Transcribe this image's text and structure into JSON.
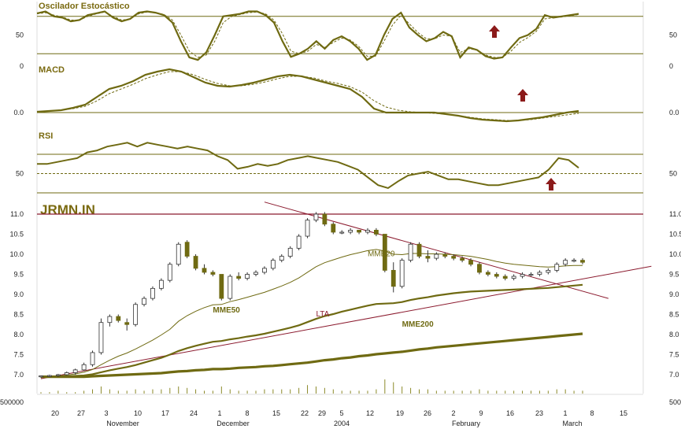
{
  "brand": "JRMN.IN",
  "colors": {
    "olive": "#6f6a12",
    "oliveLight": "#8c8a2a",
    "maroon": "#8b1a2e",
    "arrow": "#8b1a1a",
    "bg": "#ffffff"
  },
  "chart_data": [
    {
      "type": "line",
      "title": "Oscilador Estocástico",
      "ylim": [
        0,
        100
      ],
      "ticks": [
        {
          "v": 50,
          "label": "50"
        },
        {
          "v": 0,
          "label": "0"
        }
      ],
      "levels": [
        80,
        20
      ],
      "series": [
        {
          "values": [
            85,
            88,
            80,
            78,
            72,
            74,
            82,
            85,
            88,
            78,
            72,
            76,
            86,
            88,
            86,
            82,
            70,
            40,
            14,
            10,
            22,
            50,
            80,
            82,
            84,
            88,
            88,
            82,
            70,
            40,
            15,
            20,
            28,
            40,
            28,
            42,
            48,
            40,
            28,
            10,
            18,
            50,
            76,
            86,
            62,
            50,
            40,
            45,
            55,
            48,
            14,
            30,
            26,
            16,
            12,
            14,
            30,
            45,
            50,
            60,
            82,
            78,
            80,
            82,
            84
          ]
        },
        {
          "values": [
            84,
            86,
            82,
            79,
            74,
            74,
            80,
            84,
            87,
            80,
            74,
            76,
            84,
            87,
            86,
            83,
            74,
            50,
            24,
            14,
            18,
            40,
            70,
            80,
            83,
            86,
            87,
            84,
            74,
            52,
            24,
            20,
            24,
            35,
            30,
            38,
            45,
            42,
            32,
            16,
            16,
            40,
            66,
            82,
            68,
            54,
            44,
            44,
            50,
            48,
            22,
            28,
            26,
            18,
            14,
            14,
            24,
            38,
            46,
            56,
            76,
            78,
            79,
            81,
            83
          ]
        }
      ]
    },
    {
      "type": "line",
      "title": "MACD",
      "ticks": [
        {
          "v": 0.0,
          "label": "0.0"
        }
      ],
      "levels": [
        0.0
      ],
      "series": [
        {
          "values": [
            0.01,
            0.02,
            0.03,
            0.06,
            0.1,
            0.2,
            0.3,
            0.34,
            0.4,
            0.48,
            0.52,
            0.55,
            0.52,
            0.45,
            0.38,
            0.34,
            0.33,
            0.35,
            0.38,
            0.42,
            0.46,
            0.48,
            0.46,
            0.42,
            0.38,
            0.34,
            0.3,
            0.2,
            0.05,
            0.0,
            0.0,
            0.0,
            0.0,
            0.0,
            -0.02,
            -0.04,
            -0.07,
            -0.09,
            -0.1,
            -0.11,
            -0.1,
            -0.08,
            -0.06,
            -0.03,
            0.0,
            0.02
          ]
        },
        {
          "values": [
            0.01,
            0.02,
            0.03,
            0.05,
            0.08,
            0.15,
            0.24,
            0.3,
            0.36,
            0.43,
            0.48,
            0.52,
            0.52,
            0.48,
            0.42,
            0.37,
            0.34,
            0.34,
            0.36,
            0.39,
            0.43,
            0.46,
            0.46,
            0.44,
            0.4,
            0.37,
            0.33,
            0.26,
            0.15,
            0.07,
            0.03,
            0.01,
            0.0,
            -0.01,
            -0.02,
            -0.04,
            -0.06,
            -0.08,
            -0.09,
            -0.1,
            -0.1,
            -0.09,
            -0.07,
            -0.05,
            -0.03,
            -0.01
          ]
        }
      ]
    },
    {
      "type": "line",
      "title": "RSI",
      "ylim": [
        0,
        100
      ],
      "ticks": [
        {
          "v": 50,
          "label": "50"
        }
      ],
      "levels": [
        70,
        50,
        30
      ],
      "series": [
        {
          "values": [
            60,
            60,
            62,
            64,
            66,
            72,
            74,
            78,
            80,
            82,
            78,
            82,
            80,
            78,
            76,
            78,
            76,
            74,
            68,
            64,
            55,
            57,
            60,
            58,
            60,
            64,
            66,
            68,
            66,
            64,
            62,
            58,
            54,
            46,
            38,
            35,
            42,
            48,
            50,
            52,
            48,
            44,
            44,
            42,
            40,
            38,
            38,
            40,
            42,
            44,
            46,
            54,
            66,
            64,
            56
          ]
        }
      ]
    },
    {
      "type": "line",
      "title": "",
      "ylim": [
        6.8,
        11.2
      ],
      "ticks": [
        {
          "v": 11.0,
          "label": "11.0"
        },
        {
          "v": 10.5,
          "label": "10.5"
        },
        {
          "v": 10.0,
          "label": "10.0"
        },
        {
          "v": 9.5,
          "label": "9.5"
        },
        {
          "v": 9.0,
          "label": "9.0"
        },
        {
          "v": 8.5,
          "label": "8.5"
        },
        {
          "v": 8.0,
          "label": "8.0"
        },
        {
          "v": 7.5,
          "label": "7.5"
        },
        {
          "v": 7.0,
          "label": "7.0"
        }
      ],
      "resistance": 11.0,
      "annotations": [
        {
          "label": "MME20",
          "x": 38,
          "y": 9.95
        },
        {
          "label": "MME50",
          "x": 20,
          "y": 8.55
        },
        {
          "label": "LTA",
          "x": 32,
          "y": 8.45
        },
        {
          "label": "MME200",
          "x": 42,
          "y": 8.2
        }
      ],
      "candles": [
        [
          6.95,
          6.98,
          6.92,
          6.97
        ],
        [
          6.97,
          7.0,
          6.94,
          6.98
        ],
        [
          6.98,
          7.02,
          6.95,
          7.0
        ],
        [
          7.0,
          7.08,
          6.98,
          7.05
        ],
        [
          7.05,
          7.15,
          7.0,
          7.12
        ],
        [
          7.12,
          7.3,
          7.1,
          7.25
        ],
        [
          7.25,
          7.6,
          7.2,
          7.55
        ],
        [
          7.55,
          8.4,
          7.5,
          8.3
        ],
        [
          8.3,
          8.5,
          8.2,
          8.45
        ],
        [
          8.45,
          8.5,
          8.3,
          8.35
        ],
        [
          8.3,
          8.4,
          8.1,
          8.25
        ],
        [
          8.25,
          8.8,
          8.2,
          8.75
        ],
        [
          8.75,
          8.95,
          8.7,
          8.9
        ],
        [
          8.9,
          9.2,
          8.85,
          9.15
        ],
        [
          9.15,
          9.4,
          9.1,
          9.35
        ],
        [
          9.35,
          9.8,
          9.3,
          9.75
        ],
        [
          9.75,
          10.3,
          9.7,
          10.25
        ],
        [
          10.3,
          10.35,
          9.9,
          9.95
        ],
        [
          9.95,
          10.0,
          9.6,
          9.65
        ],
        [
          9.65,
          9.75,
          9.5,
          9.55
        ],
        [
          9.55,
          9.6,
          9.45,
          9.5
        ],
        [
          9.5,
          9.5,
          8.85,
          8.9
        ],
        [
          8.9,
          9.5,
          8.85,
          9.45
        ],
        [
          9.45,
          9.55,
          9.35,
          9.4
        ],
        [
          9.4,
          9.55,
          9.35,
          9.5
        ],
        [
          9.5,
          9.6,
          9.45,
          9.55
        ],
        [
          9.55,
          9.7,
          9.5,
          9.65
        ],
        [
          9.65,
          9.9,
          9.6,
          9.85
        ],
        [
          9.85,
          10.0,
          9.8,
          9.95
        ],
        [
          9.95,
          10.2,
          9.9,
          10.15
        ],
        [
          10.15,
          10.5,
          10.1,
          10.45
        ],
        [
          10.45,
          10.9,
          10.4,
          10.85
        ],
        [
          10.85,
          11.05,
          10.8,
          11.0
        ],
        [
          11.0,
          11.05,
          10.7,
          10.75
        ],
        [
          10.75,
          10.8,
          10.5,
          10.55
        ],
        [
          10.55,
          10.6,
          10.5,
          10.55
        ],
        [
          10.55,
          10.65,
          10.5,
          10.6
        ],
        [
          10.6,
          10.6,
          10.5,
          10.55
        ],
        [
          10.55,
          10.65,
          10.5,
          10.6
        ],
        [
          10.6,
          10.65,
          10.45,
          10.5
        ],
        [
          10.5,
          10.5,
          9.55,
          9.6
        ],
        [
          9.6,
          9.8,
          9.05,
          9.2
        ],
        [
          9.2,
          9.9,
          9.15,
          9.85
        ],
        [
          9.85,
          10.3,
          9.8,
          10.25
        ],
        [
          10.25,
          10.3,
          9.9,
          9.95
        ],
        [
          9.95,
          10.1,
          9.8,
          9.9
        ],
        [
          9.9,
          10.05,
          9.85,
          10.0
        ],
        [
          10.0,
          10.05,
          9.9,
          9.95
        ],
        [
          9.95,
          10.0,
          9.85,
          9.9
        ],
        [
          9.9,
          9.95,
          9.8,
          9.85
        ],
        [
          9.85,
          9.9,
          9.7,
          9.75
        ],
        [
          9.75,
          9.8,
          9.5,
          9.55
        ],
        [
          9.55,
          9.6,
          9.45,
          9.5
        ],
        [
          9.5,
          9.55,
          9.4,
          9.45
        ],
        [
          9.45,
          9.5,
          9.35,
          9.4
        ],
        [
          9.4,
          9.5,
          9.35,
          9.45
        ],
        [
          9.45,
          9.55,
          9.4,
          9.5
        ],
        [
          9.5,
          9.55,
          9.45,
          9.5
        ],
        [
          9.5,
          9.6,
          9.45,
          9.55
        ],
        [
          9.55,
          9.65,
          9.5,
          9.6
        ],
        [
          9.6,
          9.8,
          9.55,
          9.75
        ],
        [
          9.75,
          9.9,
          9.7,
          9.85
        ],
        [
          9.85,
          9.9,
          9.8,
          9.85
        ],
        [
          9.85,
          9.9,
          9.75,
          9.8
        ]
      ],
      "series": [
        {
          "name": "MME20",
          "values": [
            6.95,
            6.96,
            6.97,
            6.99,
            7.02,
            7.06,
            7.13,
            7.25,
            7.36,
            7.46,
            7.54,
            7.64,
            7.75,
            7.86,
            7.99,
            8.13,
            8.33,
            8.47,
            8.58,
            8.67,
            8.74,
            8.75,
            8.82,
            8.87,
            8.93,
            8.99,
            9.05,
            9.13,
            9.21,
            9.3,
            9.41,
            9.55,
            9.69,
            9.79,
            9.86,
            9.93,
            9.99,
            10.04,
            10.09,
            10.12,
            10.08,
            10.0,
            9.99,
            10.02,
            10.02,
            10.01,
            10.01,
            10.0,
            9.99,
            9.97,
            9.95,
            9.91,
            9.87,
            9.82,
            9.78,
            9.75,
            9.73,
            9.71,
            9.69,
            9.68,
            9.69,
            9.71,
            9.72,
            9.72
          ]
        },
        {
          "name": "MME50",
          "values": [
            6.95,
            6.95,
            6.96,
            6.96,
            6.97,
            6.98,
            7.01,
            7.06,
            7.11,
            7.15,
            7.19,
            7.24,
            7.3,
            7.36,
            7.42,
            7.5,
            7.59,
            7.66,
            7.72,
            7.77,
            7.82,
            7.84,
            7.88,
            7.91,
            7.95,
            7.98,
            8.02,
            8.07,
            8.12,
            8.17,
            8.23,
            8.31,
            8.39,
            8.46,
            8.51,
            8.57,
            8.62,
            8.67,
            8.72,
            8.76,
            8.77,
            8.78,
            8.81,
            8.86,
            8.9,
            8.93,
            8.97,
            9.0,
            9.03,
            9.05,
            9.07,
            9.08,
            9.09,
            9.1,
            9.11,
            9.12,
            9.13,
            9.14,
            9.15,
            9.16,
            9.18,
            9.2,
            9.22,
            9.24
          ]
        },
        {
          "name": "MME200",
          "values": [
            6.95,
            6.95,
            6.95,
            6.95,
            6.95,
            6.95,
            6.96,
            6.97,
            6.98,
            6.99,
            7.0,
            7.01,
            7.02,
            7.03,
            7.04,
            7.06,
            7.08,
            7.09,
            7.11,
            7.12,
            7.14,
            7.14,
            7.15,
            7.17,
            7.18,
            7.19,
            7.21,
            7.22,
            7.24,
            7.26,
            7.28,
            7.3,
            7.33,
            7.36,
            7.38,
            7.41,
            7.43,
            7.46,
            7.48,
            7.51,
            7.53,
            7.55,
            7.57,
            7.6,
            7.63,
            7.65,
            7.68,
            7.7,
            7.72,
            7.74,
            7.76,
            7.78,
            7.8,
            7.82,
            7.84,
            7.86,
            7.88,
            7.9,
            7.92,
            7.94,
            7.96,
            7.98,
            8.0,
            8.02
          ]
        }
      ],
      "trendlines": [
        {
          "name": "LTA",
          "from": [
            0,
            6.9
          ],
          "to": [
            71,
            9.7
          ]
        },
        {
          "name": "",
          "from": [
            26,
            11.3
          ],
          "to": [
            66,
            8.9
          ]
        }
      ]
    }
  ],
  "volume": {
    "ticks": [
      {
        "v": 500000,
        "label": "500000"
      }
    ],
    "values": [
      0.1,
      0.1,
      0.2,
      0.1,
      0.1,
      0.2,
      0.3,
      0.5,
      0.3,
      0.2,
      0.2,
      0.3,
      0.2,
      0.3,
      0.3,
      0.4,
      0.5,
      0.4,
      0.3,
      0.2,
      0.2,
      0.5,
      0.3,
      0.2,
      0.2,
      0.2,
      0.3,
      0.3,
      0.3,
      0.3,
      0.4,
      0.6,
      0.5,
      0.4,
      0.3,
      0.2,
      0.2,
      0.2,
      0.2,
      0.3,
      1.0,
      0.8,
      0.5,
      0.4,
      0.3,
      0.3,
      0.2,
      0.2,
      0.2,
      0.2,
      0.2,
      0.3,
      0.2,
      0.2,
      0.2,
      0.2,
      0.2,
      0.2,
      0.2,
      0.2,
      0.3,
      0.3,
      0.2,
      0.2
    ]
  },
  "x_axis": {
    "day_labels": [
      "20",
      "27",
      "3",
      "10",
      "17",
      "24",
      "1",
      "8",
      "15",
      "22",
      "29",
      "5",
      "12",
      "19",
      "26",
      "2",
      "9",
      "16",
      "23",
      "1",
      "8",
      "15"
    ],
    "month_labels": [
      "November",
      "December",
      "2004",
      "February",
      "March"
    ]
  }
}
